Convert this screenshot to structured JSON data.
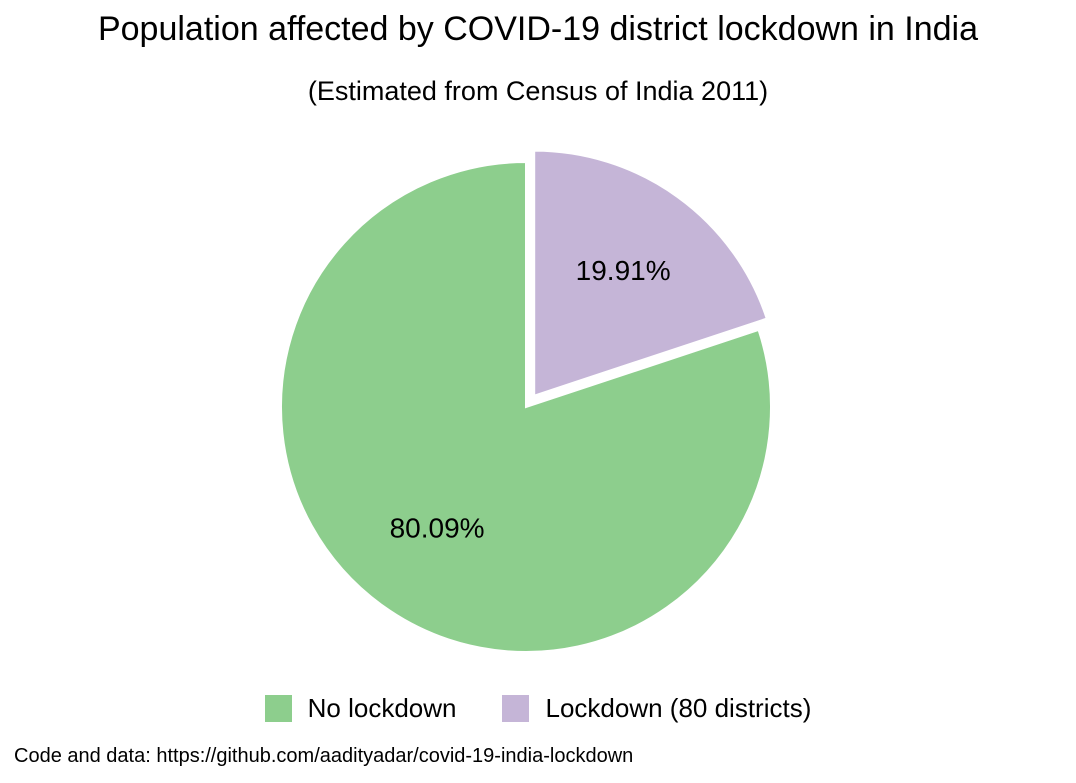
{
  "chart_data": {
    "type": "pie",
    "title": "Population affected by COVID-19 district lockdown in India",
    "subtitle": "(Estimated from Census of India 2011)",
    "categories": [
      "No lockdown",
      "Lockdown (80 districts)"
    ],
    "values": [
      80.09,
      19.91
    ],
    "labels": [
      "80.09%",
      "19.91%"
    ],
    "colors": [
      "#8dce8d",
      "#c5b5d7"
    ],
    "exploded": [
      false,
      true
    ],
    "legend_position": "bottom-center",
    "caption": "Code and data: https://github.com/aadityadar/covid-19-india-lockdown"
  }
}
